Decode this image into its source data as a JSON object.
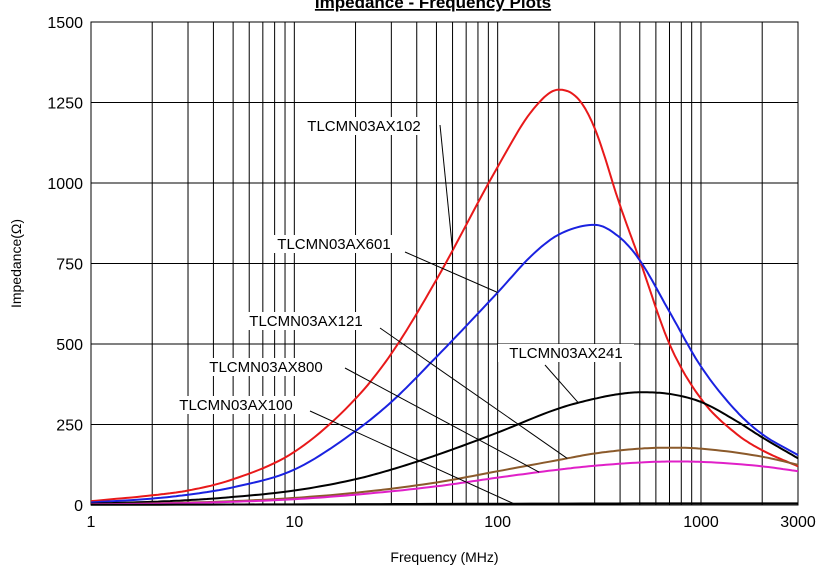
{
  "chart_data": {
    "type": "line",
    "title": "Impedance - Frequency Plots",
    "xlabel": "Frequency (MHz)",
    "ylabel": "Impedance(Ω)",
    "x_scale": "log",
    "xlim": [
      1,
      3000
    ],
    "ylim": [
      0,
      1500
    ],
    "x_ticks": [
      1,
      10,
      100,
      1000,
      3000
    ],
    "x_tick_labels": [
      "1",
      "10",
      "100",
      "1000",
      "3000"
    ],
    "y_ticks": [
      0,
      250,
      500,
      750,
      1000,
      1250,
      1500
    ],
    "y_tick_labels": [
      "0",
      "250",
      "500",
      "750",
      "1000",
      "1250",
      "1500"
    ],
    "grid": true,
    "series": [
      {
        "name": "TLCMN03AX102",
        "color": "#e8191a",
        "x": [
          1,
          2,
          3,
          5,
          10,
          20,
          30,
          50,
          100,
          150,
          200,
          250,
          300,
          400,
          500,
          700,
          1000,
          1500,
          2000,
          3000
        ],
        "y": [
          12,
          30,
          45,
          80,
          165,
          330,
          470,
          700,
          1050,
          1230,
          1290,
          1260,
          1170,
          930,
          760,
          500,
          330,
          220,
          170,
          120
        ]
      },
      {
        "name": "TLCMN03AX601",
        "color": "#1a22e0",
        "x": [
          1,
          2,
          3,
          5,
          10,
          20,
          30,
          50,
          100,
          150,
          200,
          300,
          400,
          500,
          700,
          1000,
          1500,
          2000,
          3000
        ],
        "y": [
          8,
          20,
          32,
          55,
          110,
          230,
          320,
          460,
          660,
          780,
          840,
          870,
          830,
          760,
          600,
          430,
          290,
          220,
          155
        ]
      },
      {
        "name": "TLCMN03AX241",
        "color": "#000000",
        "x": [
          1,
          2,
          3,
          5,
          10,
          20,
          30,
          50,
          100,
          200,
          300,
          400,
          500,
          700,
          1000,
          1500,
          2000,
          3000
        ],
        "y": [
          4,
          10,
          15,
          25,
          45,
          80,
          110,
          155,
          225,
          300,
          330,
          345,
          350,
          345,
          320,
          260,
          210,
          145
        ]
      },
      {
        "name": "TLCMN03AX121",
        "color": "#8b5a2b",
        "x": [
          1,
          2,
          5,
          10,
          20,
          50,
          100,
          200,
          300,
          500,
          700,
          1000,
          2000,
          3000
        ],
        "y": [
          2,
          5,
          12,
          22,
          38,
          70,
          105,
          140,
          160,
          175,
          178,
          175,
          150,
          125
        ]
      },
      {
        "name": "TLCMN03AX800",
        "color": "#e020c8",
        "x": [
          1,
          2,
          5,
          10,
          20,
          50,
          100,
          200,
          300,
          500,
          700,
          1000,
          2000,
          3000
        ],
        "y": [
          2,
          4,
          10,
          18,
          32,
          58,
          85,
          110,
          122,
          132,
          135,
          134,
          120,
          105
        ]
      },
      {
        "name": "TLCMN03AX100",
        "color": "#000000",
        "x": [
          1,
          10,
          100,
          1000,
          3000
        ],
        "y": [
          0.5,
          2,
          4,
          5,
          5
        ]
      }
    ],
    "annotations": [
      {
        "text": "TLCMN03AX102",
        "series": "TLCMN03AX102",
        "target_x": 60
      },
      {
        "text": "TLCMN03AX601",
        "series": "TLCMN03AX601",
        "target_x": 100
      },
      {
        "text": "TLCMN03AX121",
        "series": "TLCMN03AX121",
        "target_x": 220
      },
      {
        "text": "TLCMN03AX800",
        "series": "TLCMN03AX800",
        "target_x": 160
      },
      {
        "text": "TLCMN03AX100",
        "series": "TLCMN03AX100",
        "target_x": 120
      },
      {
        "text": "TLCMN03AX241",
        "series": "TLCMN03AX241",
        "target_x": 250
      }
    ]
  }
}
